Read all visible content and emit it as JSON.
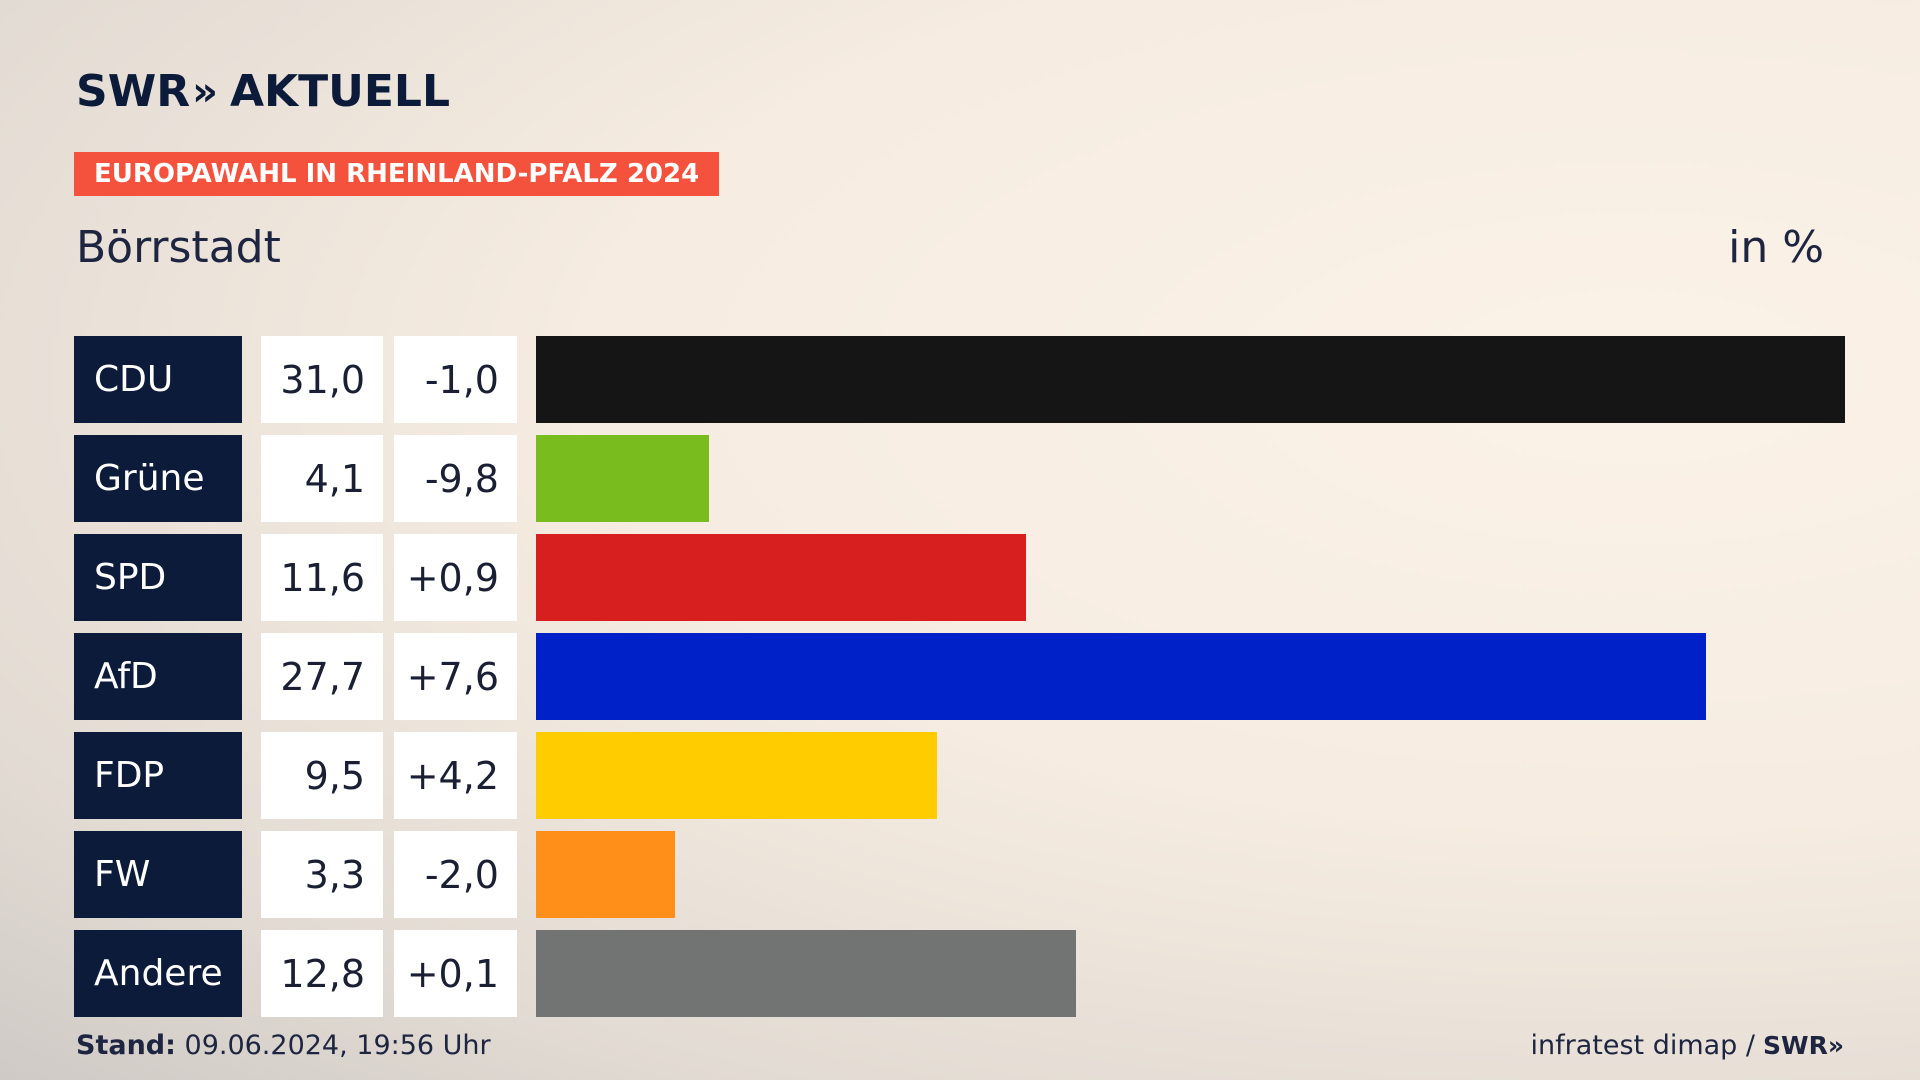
{
  "header": {
    "logo_text": "SWR",
    "logo_chevrons": "»",
    "logo_suffix": "AKTUELL",
    "badge": "EUROPAWAHL IN RHEINLAND-PFALZ 2024",
    "location": "Börrstadt",
    "unit": "in %"
  },
  "chart_data": {
    "type": "bar",
    "categories": [
      "CDU",
      "Grüne",
      "SPD",
      "AfD",
      "FDP",
      "FW",
      "Andere"
    ],
    "values": [
      31.0,
      4.1,
      11.6,
      27.7,
      9.5,
      3.3,
      12.8
    ],
    "value_labels": [
      "31,0",
      "4,1",
      "11,6",
      "27,7",
      "9,5",
      "3,3",
      "12,8"
    ],
    "diff_labels": [
      "-1,0",
      "-9,8",
      "+0,9",
      "+7,6",
      "+4,2",
      "-2,0",
      "+0,1"
    ],
    "colors": [
      "#151515",
      "#78bc1e",
      "#d71f1f",
      "#0021c7",
      "#ffcc00",
      "#ff8f18",
      "#727373"
    ],
    "xlim": [
      0,
      31.0
    ]
  },
  "footer": {
    "stand_label": "Stand:",
    "stand_value": "09.06.2024, 19:56 Uhr",
    "source": "infratest dimap /",
    "source_logo": "SWR»"
  }
}
